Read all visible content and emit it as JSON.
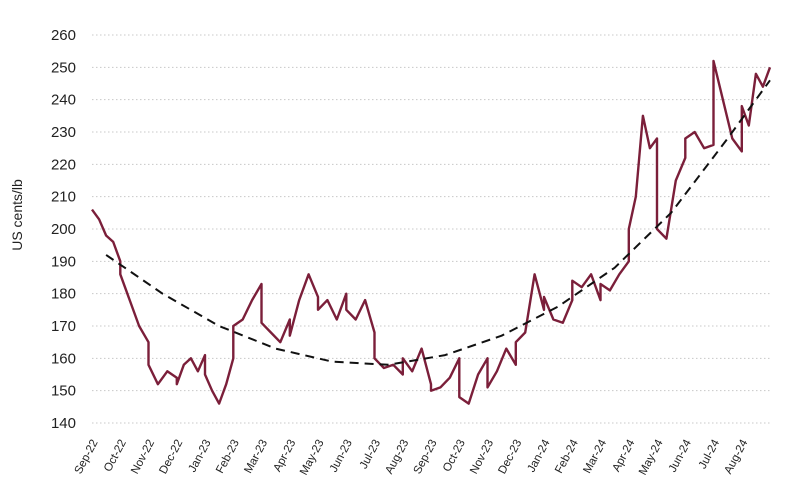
{
  "chart_data": {
    "type": "line",
    "title": "",
    "xlabel": "",
    "ylabel": "US cents/lb",
    "ylim": [
      140,
      260
    ],
    "yticks": [
      140,
      150,
      160,
      170,
      180,
      190,
      200,
      210,
      220,
      230,
      240,
      250,
      260
    ],
    "x_tick_labels": [
      "Sep-22",
      "Oct-22",
      "Nov-22",
      "Dec-22",
      "Jan-23",
      "Feb-23",
      "Mar-23",
      "Apr-23",
      "May-23",
      "Jun-23",
      "Jul-23",
      "Aug-23",
      "Sep-23",
      "Oct-23",
      "Nov-23",
      "Dec-23",
      "Jan-24",
      "Feb-24",
      "Mar-24",
      "Apr-24",
      "May-24",
      "Jun-24",
      "Jul-24",
      "Aug-24"
    ],
    "grid": "horizontal dotted",
    "legend": "none",
    "series": [
      {
        "style": "solid",
        "color": "#7b1f3a",
        "x": [
          "Sep-22",
          "Sep-22",
          "Sep-22",
          "Sep-22",
          "Sep-22",
          "Oct-22",
          "Oct-22",
          "Oct-22",
          "Oct-22",
          "Nov-22",
          "Nov-22",
          "Nov-22",
          "Nov-22",
          "Dec-22",
          "Dec-22",
          "Dec-22",
          "Dec-22",
          "Dec-22",
          "Jan-23",
          "Jan-23",
          "Jan-23",
          "Jan-23",
          "Jan-23",
          "Feb-23",
          "Feb-23",
          "Feb-23",
          "Feb-23",
          "Mar-23",
          "Mar-23",
          "Mar-23",
          "Mar-23",
          "Apr-23",
          "Apr-23",
          "Apr-23",
          "Apr-23",
          "May-23",
          "May-23",
          "May-23",
          "May-23",
          "Jun-23",
          "Jun-23",
          "Jun-23",
          "Jun-23",
          "Jul-23",
          "Jul-23",
          "Jul-23",
          "Jul-23",
          "Aug-23",
          "Aug-23",
          "Aug-23",
          "Aug-23",
          "Sep-23",
          "Sep-23",
          "Sep-23",
          "Sep-23",
          "Oct-23",
          "Oct-23",
          "Oct-23",
          "Oct-23",
          "Nov-23",
          "Nov-23",
          "Nov-23",
          "Nov-23",
          "Dec-23",
          "Dec-23",
          "Dec-23",
          "Dec-23",
          "Jan-24",
          "Jan-24",
          "Jan-24",
          "Jan-24",
          "Feb-24",
          "Feb-24",
          "Feb-24",
          "Feb-24",
          "Mar-24",
          "Mar-24",
          "Mar-24",
          "Mar-24",
          "Apr-24",
          "Apr-24",
          "Apr-24",
          "Apr-24",
          "Apr-24",
          "May-24",
          "May-24",
          "May-24",
          "May-24",
          "Jun-24",
          "Jun-24",
          "Jun-24",
          "Jun-24",
          "Jul-24",
          "Jul-24",
          "Jul-24",
          "Jul-24",
          "Aug-24",
          "Aug-24",
          "Aug-24",
          "Aug-24",
          "Aug-24"
        ],
        "values": [
          206,
          203,
          198,
          196,
          190,
          186,
          178,
          170,
          165,
          158,
          152,
          156,
          154,
          152,
          158,
          160,
          156,
          161,
          155,
          150,
          146,
          152,
          160,
          170,
          172,
          178,
          183,
          171,
          168,
          165,
          172,
          167,
          178,
          186,
          179,
          175,
          178,
          172,
          180,
          175,
          172,
          178,
          168,
          160,
          157,
          158,
          155,
          160,
          156,
          163,
          152,
          150,
          151,
          154,
          160,
          148,
          146,
          155,
          160,
          151,
          156,
          163,
          158,
          165,
          168,
          186,
          175,
          179,
          172,
          171,
          178,
          184,
          182,
          186,
          178,
          183,
          181,
          186,
          190,
          200,
          210,
          235,
          225,
          228,
          200,
          197,
          215,
          222,
          228,
          230,
          225,
          226,
          252,
          240,
          228,
          224,
          238,
          232,
          248,
          244,
          250
        ]
      },
      {
        "style": "dashed",
        "color": "#111111",
        "x": [
          "Sep-22",
          "Nov-22",
          "Jan-23",
          "Mar-23",
          "May-23",
          "Jul-23",
          "Sep-23",
          "Nov-23",
          "Jan-24",
          "Mar-24",
          "May-24",
          "Jul-24",
          "Aug-24"
        ],
        "values": [
          192,
          180,
          170,
          163,
          159,
          158,
          161,
          167,
          176,
          188,
          205,
          228,
          246
        ]
      }
    ]
  }
}
